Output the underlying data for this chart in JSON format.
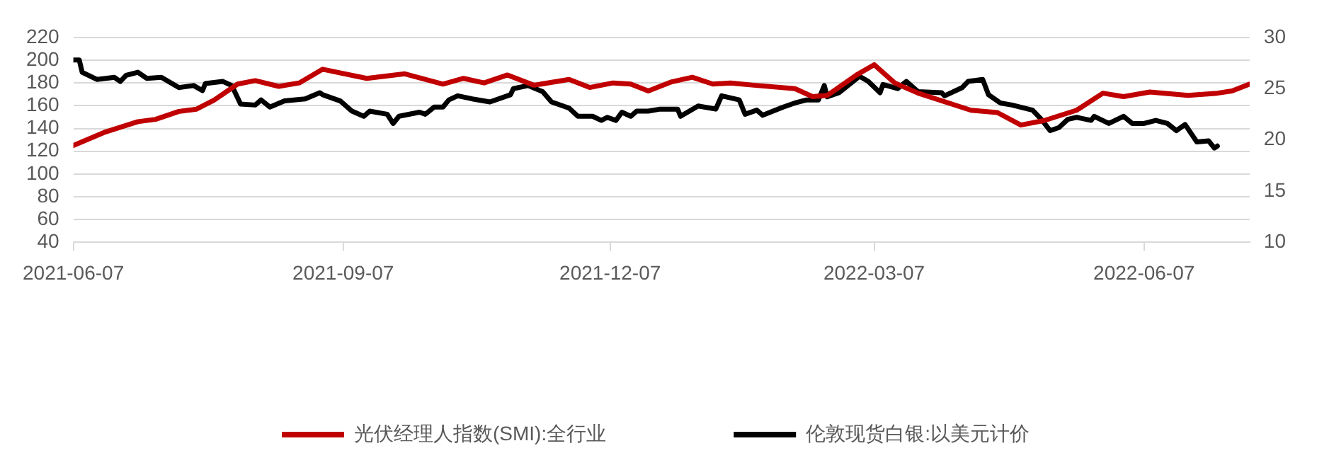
{
  "chart_data": {
    "type": "line",
    "series": [
      {
        "name": "光伏经理人指数(SMI):全行业",
        "color": "#c00000",
        "axis": "y",
        "x": [
          "2021-06-07",
          "2021-06-18",
          "2021-06-29",
          "2021-07-05",
          "2021-07-13",
          "2021-07-19",
          "2021-07-25",
          "2021-08-02",
          "2021-08-08",
          "2021-08-16",
          "2021-08-23",
          "2021-08-31",
          "2021-09-15",
          "2021-09-28",
          "2021-10-11",
          "2021-10-18",
          "2021-10-25",
          "2021-11-02",
          "2021-11-11",
          "2021-11-23",
          "2021-11-30",
          "2021-12-08",
          "2021-12-14",
          "2021-12-20",
          "2021-12-28",
          "2022-01-04",
          "2022-01-11",
          "2022-01-17",
          "2022-01-25",
          "2022-02-08",
          "2022-02-14",
          "2022-02-19",
          "2022-03-01",
          "2022-03-07",
          "2022-03-14",
          "2022-03-22",
          "2022-04-09",
          "2022-04-18",
          "2022-04-26",
          "2022-05-04",
          "2022-05-15",
          "2022-05-24",
          "2022-05-31",
          "2022-06-09",
          "2022-06-22",
          "2022-07-02",
          "2022-07-07",
          "2022-07-13"
        ],
        "values": [
          125,
          137,
          146,
          148,
          155,
          157,
          165,
          179,
          182,
          177,
          180,
          192,
          184,
          188,
          179,
          184,
          180,
          187,
          178,
          183,
          176,
          180,
          179,
          173,
          181,
          185,
          179,
          180,
          178,
          175,
          168,
          169,
          187,
          196,
          180,
          171,
          156,
          154,
          143,
          147,
          156,
          171,
          168,
          172,
          169,
          171,
          173,
          179
        ]
      },
      {
        "name": "伦敦现货白银:以美元计价",
        "color": "#000000",
        "axis": "y2",
        "x": [
          "2021-06-07",
          "2021-06-09",
          "2021-06-10",
          "2021-06-15",
          "2021-06-21",
          "2021-06-23",
          "2021-06-25",
          "2021-06-29",
          "2021-07-02",
          "2021-07-07",
          "2021-07-13",
          "2021-07-18",
          "2021-07-21",
          "2021-07-22",
          "2021-07-28",
          "2021-07-31",
          "2021-08-03",
          "2021-08-08",
          "2021-08-10",
          "2021-08-13",
          "2021-08-18",
          "2021-08-25",
          "2021-08-30",
          "2021-08-31",
          "2021-09-06",
          "2021-09-10",
          "2021-09-14",
          "2021-09-16",
          "2021-09-22",
          "2021-09-24",
          "2021-09-26",
          "2021-10-03",
          "2021-10-05",
          "2021-10-08",
          "2021-10-11",
          "2021-10-13",
          "2021-10-16",
          "2021-10-21",
          "2021-10-27",
          "2021-11-03",
          "2021-11-04",
          "2021-11-09",
          "2021-11-14",
          "2021-11-17",
          "2021-11-23",
          "2021-11-26",
          "2021-12-01",
          "2021-12-04",
          "2021-12-06",
          "2021-12-09",
          "2021-12-11",
          "2021-12-14",
          "2021-12-16",
          "2021-12-20",
          "2021-12-24",
          "2021-12-30",
          "2021-12-31",
          "2022-01-06",
          "2022-01-12",
          "2022-01-14",
          "2022-01-20",
          "2022-01-22",
          "2022-01-26",
          "2022-01-28",
          "2022-02-04",
          "2022-02-08",
          "2022-02-12",
          "2022-02-16",
          "2022-02-18",
          "2022-02-19",
          "2022-02-23",
          "2022-03-02",
          "2022-03-05",
          "2022-03-09",
          "2022-03-10",
          "2022-03-15",
          "2022-03-18",
          "2022-03-22",
          "2022-03-30",
          "2022-03-31",
          "2022-04-06",
          "2022-04-08",
          "2022-04-13",
          "2022-04-15",
          "2022-04-19",
          "2022-04-23",
          "2022-04-30",
          "2022-05-03",
          "2022-05-06",
          "2022-05-09",
          "2022-05-12",
          "2022-05-15",
          "2022-05-20",
          "2022-05-21",
          "2022-05-26",
          "2022-05-31",
          "2022-06-03",
          "2022-06-07",
          "2022-06-11",
          "2022-06-15",
          "2022-06-18",
          "2022-06-21",
          "2022-06-25",
          "2022-06-29",
          "2022-07-01",
          "2022-07-02"
        ],
        "values": [
          27.8,
          27.8,
          26.6,
          25.9,
          26.1,
          25.7,
          26.3,
          26.6,
          26.0,
          26.1,
          25.1,
          25.3,
          24.8,
          25.5,
          25.7,
          25.3,
          23.5,
          23.4,
          23.9,
          23.2,
          23.8,
          24.0,
          24.6,
          24.4,
          23.8,
          22.8,
          22.3,
          22.8,
          22.5,
          21.6,
          22.3,
          22.7,
          22.5,
          23.2,
          23.2,
          23.9,
          24.3,
          24.0,
          23.7,
          24.4,
          25.0,
          25.3,
          24.7,
          23.7,
          23.1,
          22.3,
          22.3,
          21.9,
          22.2,
          21.9,
          22.7,
          22.3,
          22.8,
          22.8,
          23.0,
          23.0,
          22.3,
          23.3,
          23.0,
          24.3,
          23.9,
          22.5,
          22.9,
          22.4,
          23.2,
          23.6,
          23.9,
          23.9,
          25.3,
          24.2,
          24.6,
          26.2,
          25.7,
          24.6,
          25.4,
          25.0,
          25.7,
          24.7,
          24.6,
          24.3,
          25.1,
          25.7,
          25.9,
          24.4,
          23.6,
          23.4,
          22.9,
          22.0,
          20.9,
          21.2,
          22.0,
          22.2,
          21.9,
          22.3,
          21.6,
          22.3,
          21.6,
          21.6,
          21.9,
          21.6,
          20.9,
          21.5,
          19.8,
          19.9,
          19.2,
          19.4
        ]
      }
    ],
    "xlim": [
      "2021-06-07",
      "2022-07-13"
    ],
    "xticks": [
      "2021-06-07",
      "2021-09-07",
      "2021-12-07",
      "2022-03-07",
      "2022-06-07"
    ],
    "ylim": [
      40,
      220
    ],
    "yticks": [
      40,
      60,
      80,
      100,
      120,
      140,
      160,
      180,
      200,
      220
    ],
    "y2lim": [
      10,
      30
    ],
    "y2ticks": [
      10,
      15,
      20,
      25,
      30
    ],
    "grid": "y",
    "legend": "bottom",
    "marker": "none",
    "line_style": "solid"
  }
}
